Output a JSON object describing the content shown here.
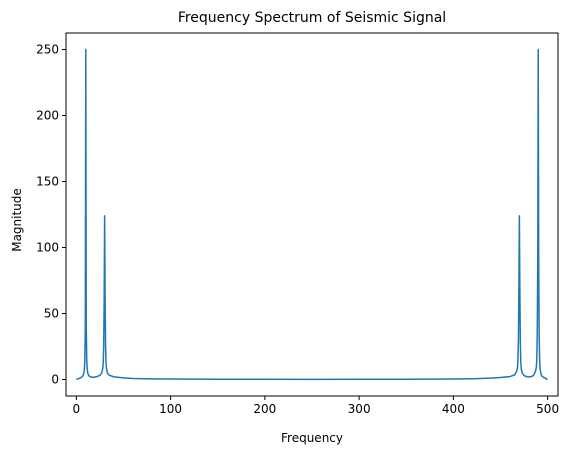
{
  "chart_data": {
    "type": "line",
    "title": "Frequency Spectrum of Seismic Signal",
    "xlabel": "Frequency",
    "ylabel": "Magnitude",
    "xlim": [
      -11,
      511
    ],
    "ylim": [
      -12.5,
      262.5
    ],
    "xticks": [
      0,
      100,
      200,
      300,
      400,
      500
    ],
    "yticks": [
      0,
      50,
      100,
      150,
      200,
      250
    ],
    "grid": false,
    "line_color": "#1f77b4",
    "series": [
      {
        "x": [
          0,
          2,
          4,
          6,
          7,
          8,
          8.5,
          9,
          9.5,
          10,
          10.5,
          11,
          11.5,
          12,
          13,
          15,
          18,
          22,
          25,
          27,
          28,
          28.5,
          29,
          29.5,
          30,
          30.5,
          31,
          31.5,
          32,
          33,
          35,
          40,
          50,
          60,
          80,
          100,
          150,
          200,
          250,
          300,
          350,
          400,
          420,
          440,
          450,
          460,
          465,
          467,
          468,
          468.5,
          469,
          469.5,
          470,
          470.5,
          471,
          471.5,
          472,
          473,
          475,
          478,
          482,
          485,
          487,
          488,
          488.5,
          489,
          489.5,
          490,
          490.5,
          491,
          491.5,
          492,
          493,
          494,
          496,
          498,
          500
        ],
        "y": [
          0,
          0.6,
          1.2,
          2.0,
          3.0,
          5.0,
          8.0,
          15.0,
          40.0,
          250,
          40.0,
          15.0,
          8.0,
          5.0,
          3.0,
          2.0,
          1.6,
          2.2,
          3.2,
          5.0,
          8.5,
          12.0,
          25.0,
          60.0,
          124,
          60.0,
          25.0,
          12.0,
          8.0,
          5.0,
          3.2,
          2.0,
          1.2,
          0.8,
          0.5,
          0.35,
          0.2,
          0.15,
          0.1,
          0.15,
          0.2,
          0.4,
          0.6,
          1.0,
          1.5,
          2.2,
          3.5,
          6.0,
          9.0,
          14.0,
          30.0,
          70.0,
          124,
          70.0,
          30.0,
          14.0,
          8.0,
          5.0,
          3.0,
          2.0,
          2.0,
          3.0,
          6.0,
          9.0,
          15.0,
          35.0,
          90.0,
          250,
          90.0,
          35.0,
          15.0,
          8.0,
          4.0,
          2.5,
          1.5,
          0.8,
          0
        ]
      }
    ]
  }
}
